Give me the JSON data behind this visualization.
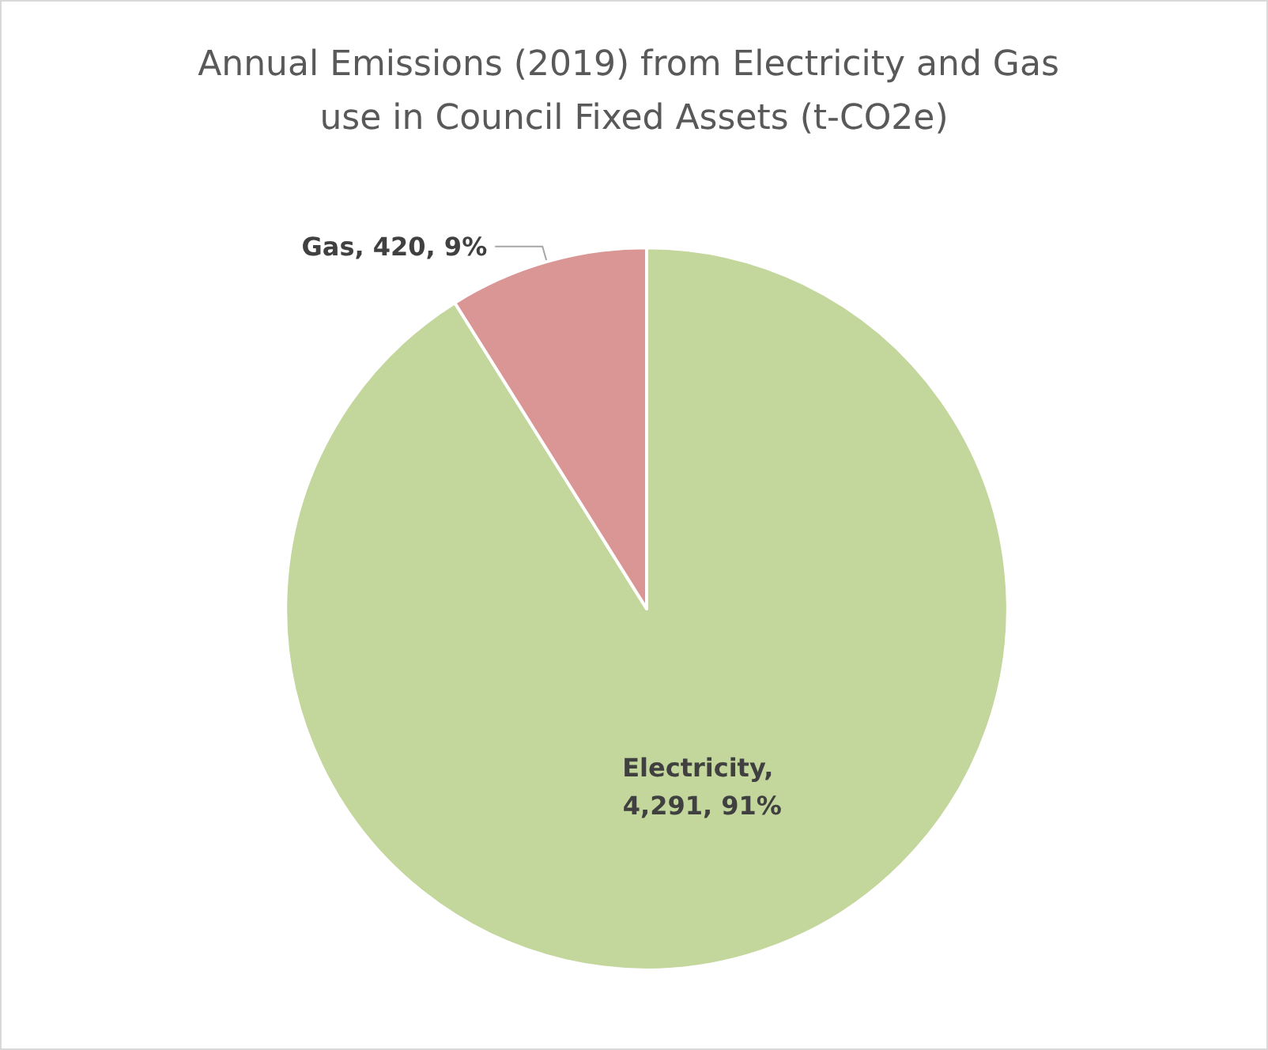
{
  "chart_data": {
    "type": "pie",
    "title": "Annual Emissions (2019) from Electricity and Gas use in Council Fixed Assets (t-CO2e)",
    "categories": [
      "Electricity",
      "Gas"
    ],
    "values": [
      4291,
      420
    ],
    "value_labels": [
      ", 4,291, 91%",
      ", 420, 9%"
    ],
    "colors": [
      "#c3d69b",
      "#d99694"
    ],
    "legend": false
  }
}
